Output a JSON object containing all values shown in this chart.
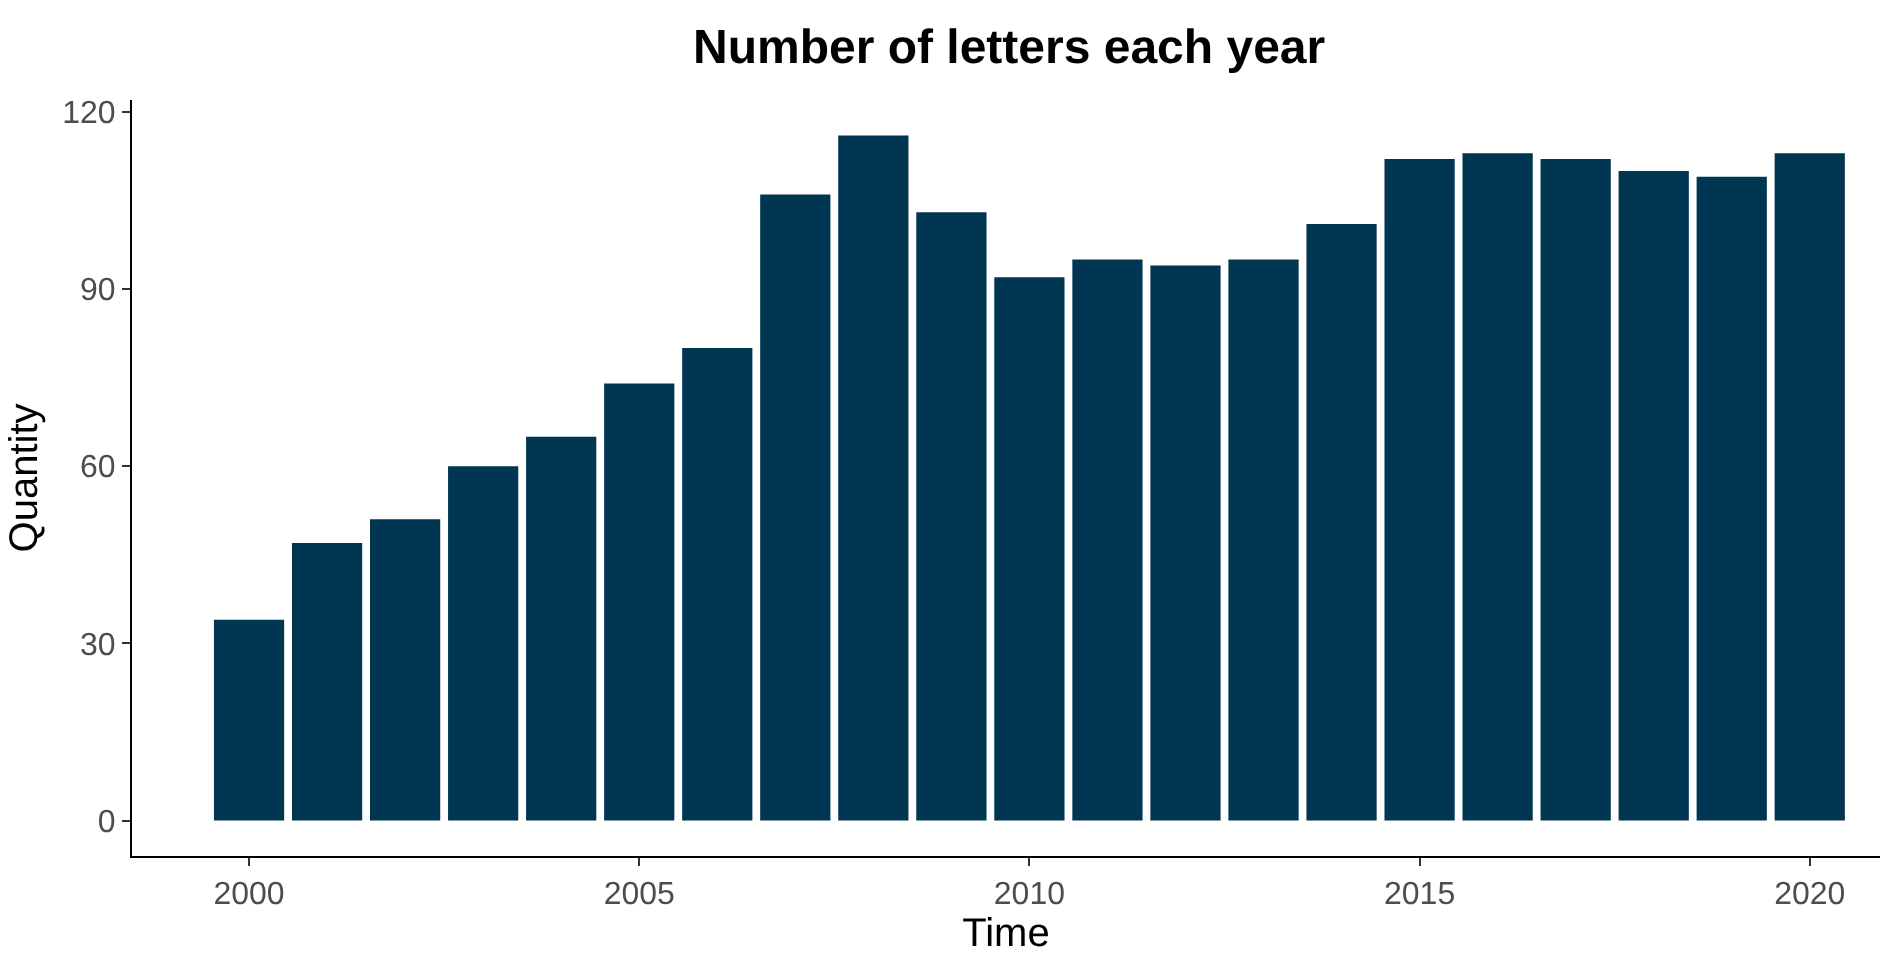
{
  "chart_data": {
    "type": "bar",
    "title": "Number of letters each year",
    "xlabel": "Time",
    "ylabel": "Quantity",
    "x": [
      2000,
      2001,
      2002,
      2003,
      2004,
      2005,
      2006,
      2007,
      2008,
      2009,
      2010,
      2011,
      2012,
      2013,
      2014,
      2015,
      2016,
      2017,
      2018,
      2019,
      2020
    ],
    "values": [
      34,
      47,
      51,
      60,
      65,
      74,
      80,
      106,
      116,
      103,
      92,
      95,
      94,
      95,
      101,
      112,
      113,
      112,
      110,
      109,
      113
    ],
    "color": "#003651",
    "xlim": [
      1998.5,
      2020.9
    ],
    "xticks": [
      2000,
      2005,
      2010,
      2015,
      2020
    ],
    "ylim": [
      -6,
      122
    ],
    "yticks": [
      0,
      30,
      60,
      90,
      120
    ]
  }
}
